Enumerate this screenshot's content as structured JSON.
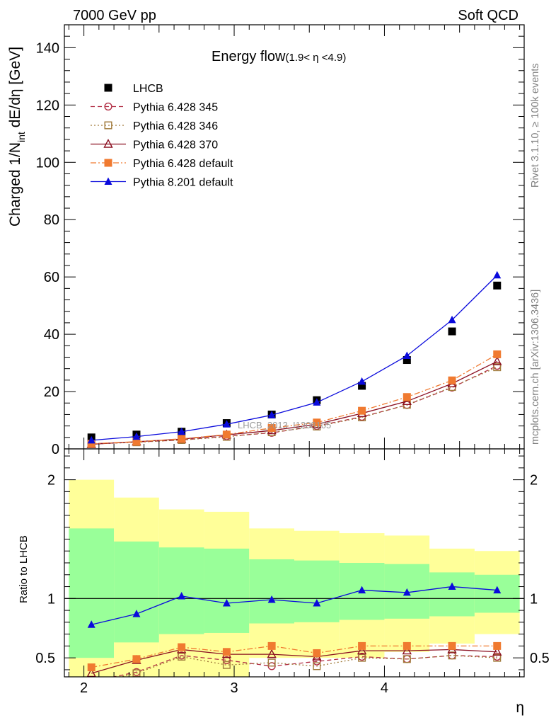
{
  "header": {
    "left": "7000 GeV pp",
    "right": "Soft QCD"
  },
  "side_labels": {
    "rivet": "Rivet 3.1.10, ≥ 100k events",
    "mcplots": "mcplots.cern.ch [arXiv:1306.3436]"
  },
  "chart_data": [
    {
      "type": "line",
      "title": "Energy flow",
      "subtitle": "(1.9< η <4.9)",
      "ylabel_main": "Charged 1/N",
      "ylabel_sub": "int",
      "ylabel_tail": " dE/dη [GeV]",
      "xlabel": "η",
      "watermark": "LHCB_2013_I1208105",
      "xlim": [
        1.87,
        4.93
      ],
      "ylim": [
        0,
        148
      ],
      "xticks": [
        "2",
        "3",
        "4"
      ],
      "yticks": [
        "0",
        "20",
        "40",
        "60",
        "80",
        "100",
        "120",
        "140"
      ],
      "legend_position": "top-left",
      "x": [
        2.05,
        2.35,
        2.65,
        2.95,
        3.25,
        3.55,
        3.85,
        4.15,
        4.45,
        4.75
      ],
      "series": [
        {
          "name": "LHCB",
          "marker": "square-filled",
          "color": "#000000",
          "line": "none",
          "values": [
            4.0,
            5.0,
            6.0,
            9.0,
            12.0,
            17.0,
            22.0,
            31.0,
            41.0,
            57.0
          ]
        },
        {
          "name": "Pythia 6.428 345",
          "marker": "circle-open",
          "color": "#b22f45",
          "line": "dashed",
          "values": [
            1.8,
            2.4,
            3.1,
            4.4,
            5.6,
            8.0,
            11.2,
            15.3,
            21.4,
            29.0
          ]
        },
        {
          "name": "Pythia 6.428 346",
          "marker": "square-open",
          "color": "#a07a3a",
          "line": "dotted",
          "values": [
            1.7,
            2.3,
            3.1,
            4.2,
            5.8,
            7.8,
            11.0,
            15.4,
            21.6,
            28.5
          ]
        },
        {
          "name": "Pythia 6.428 370",
          "marker": "triangle-open",
          "color": "#8b1021",
          "line": "solid",
          "values": [
            1.6,
            2.5,
            3.4,
            4.9,
            6.4,
            8.6,
            12.4,
            16.6,
            22.8,
            30.5
          ]
        },
        {
          "name": "Pythia 6.428 default",
          "marker": "square-filled",
          "color": "#f07a30",
          "line": "dashdot",
          "values": [
            1.8,
            2.5,
            3.5,
            5.0,
            7.3,
            9.2,
            13.3,
            18.1,
            23.9,
            33.0
          ]
        },
        {
          "name": "Pythia 8.201 default",
          "marker": "triangle-filled",
          "color": "#0a0adc",
          "line": "solid",
          "values": [
            3.0,
            4.3,
            6.0,
            8.6,
            11.8,
            16.2,
            23.5,
            32.5,
            45.0,
            60.6
          ]
        }
      ]
    },
    {
      "type": "line",
      "ylabel": "Ratio to LHCB",
      "xlabel": "η",
      "ylim": [
        0.34,
        2.26
      ],
      "yticks": [
        "0.5",
        "1",
        "2"
      ],
      "bands": {
        "bin_edges": [
          1.9,
          2.2,
          2.5,
          2.8,
          3.1,
          3.4,
          3.7,
          4.0,
          4.3,
          4.6,
          4.9
        ],
        "yellow_low": [
          0.33,
          0.33,
          0.33,
          0.33,
          0.5,
          0.5,
          0.5,
          0.55,
          0.62,
          0.7
        ],
        "yellow_high": [
          2.0,
          1.85,
          1.75,
          1.73,
          1.59,
          1.57,
          1.55,
          1.53,
          1.42,
          1.4
        ],
        "green_low": [
          0.5,
          0.63,
          0.7,
          0.71,
          0.79,
          0.8,
          0.82,
          0.83,
          0.85,
          0.88
        ],
        "green_high": [
          1.59,
          1.48,
          1.43,
          1.42,
          1.33,
          1.32,
          1.3,
          1.29,
          1.22,
          1.2
        ]
      },
      "x": [
        2.05,
        2.35,
        2.65,
        2.95,
        3.25,
        3.55,
        3.85,
        4.15,
        4.45,
        4.75
      ],
      "series": [
        {
          "name": "Pythia 6.428 345",
          "values": [
            0.3,
            0.38,
            0.52,
            0.48,
            0.43,
            0.47,
            0.51,
            0.49,
            0.52,
            0.51
          ]
        },
        {
          "name": "Pythia 6.428 346",
          "values": [
            0.29,
            0.37,
            0.51,
            0.44,
            0.46,
            0.43,
            0.5,
            0.49,
            0.52,
            0.5
          ]
        },
        {
          "name": "Pythia 6.428 370",
          "values": [
            0.37,
            0.48,
            0.57,
            0.53,
            0.53,
            0.51,
            0.56,
            0.56,
            0.57,
            0.55
          ]
        },
        {
          "name": "Pythia 6.428 default",
          "values": [
            0.42,
            0.49,
            0.59,
            0.55,
            0.6,
            0.54,
            0.6,
            0.6,
            0.6,
            0.6
          ]
        },
        {
          "name": "Pythia 8.201 default",
          "values": [
            0.78,
            0.87,
            1.02,
            0.96,
            0.99,
            0.96,
            1.07,
            1.05,
            1.1,
            1.07
          ]
        }
      ]
    }
  ]
}
